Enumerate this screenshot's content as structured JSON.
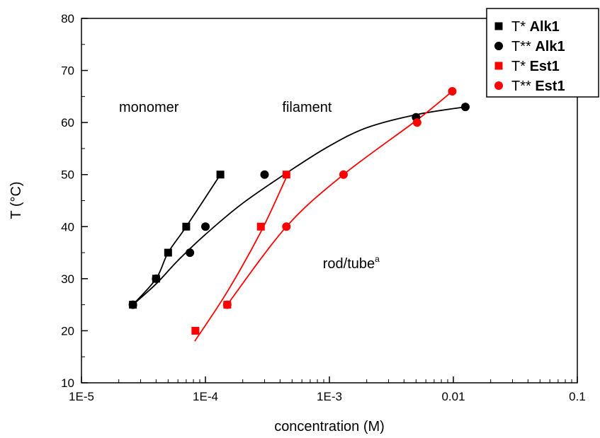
{
  "chart_data": {
    "type": "scatter",
    "x_scale": "log",
    "xlim": [
      1e-05,
      0.1
    ],
    "ylim": [
      10,
      80
    ],
    "x_ticks": [
      1e-05,
      0.0001,
      0.001,
      0.01,
      0.1
    ],
    "x_tick_labels": [
      "1E-5",
      "1E-4",
      "1E-3",
      "0.01",
      "0.1"
    ],
    "y_ticks": [
      10,
      20,
      30,
      40,
      50,
      60,
      70,
      80
    ],
    "y_tick_labels": [
      "10",
      "20",
      "30",
      "40",
      "50",
      "60",
      "70",
      "80"
    ],
    "xlabel": "concentration (M)",
    "ylabel": "T (°C)",
    "grid": false,
    "legend_position": "top-right",
    "region_labels": [
      {
        "text": "monomer",
        "x": 3.5e-05,
        "y": 63
      },
      {
        "text": "filament",
        "x": 0.00066,
        "y": 63
      },
      {
        "text": "rod/tube",
        "superscript": "a",
        "x": 0.0015,
        "y": 33
      }
    ],
    "series": [
      {
        "name": "T* Alk1",
        "legend_prefix": "T*",
        "legend_suffix": "Alk1",
        "marker": "square",
        "color": "#000000",
        "points": [
          [
            2.6e-05,
            25
          ],
          [
            4e-05,
            30
          ],
          [
            5e-05,
            35
          ],
          [
            7e-05,
            40
          ],
          [
            0.000132,
            50
          ]
        ],
        "fit": [
          [
            2.6e-05,
            25
          ],
          [
            4e-05,
            30
          ],
          [
            5e-05,
            35
          ],
          [
            7e-05,
            40
          ],
          [
            0.000132,
            50
          ]
        ]
      },
      {
        "name": "T** Alk1",
        "legend_prefix": "T**",
        "legend_suffix": "Alk1",
        "marker": "circle",
        "color": "#000000",
        "points": [
          [
            2.6e-05,
            25
          ],
          [
            4e-05,
            30
          ],
          [
            7.5e-05,
            35
          ],
          [
            0.0001,
            40
          ],
          [
            0.0003,
            50
          ],
          [
            0.005,
            61
          ],
          [
            0.0125,
            63
          ]
        ],
        "fit": [
          [
            2.6e-05,
            25
          ],
          [
            4e-05,
            29
          ],
          [
            6e-05,
            33.5
          ],
          [
            0.0001,
            38.5
          ],
          [
            0.0002,
            44.5
          ],
          [
            0.0005,
            51
          ],
          [
            0.001,
            55.5
          ],
          [
            0.002,
            59
          ],
          [
            0.005,
            61.5
          ],
          [
            0.0125,
            63
          ]
        ]
      },
      {
        "name": "T* Est1",
        "legend_prefix": "T*",
        "legend_suffix": "Est1",
        "marker": "square",
        "color": "#ff0000",
        "points": [
          [
            8.3e-05,
            20
          ],
          [
            0.00015,
            25
          ],
          [
            0.00028,
            40
          ],
          [
            0.00045,
            50
          ]
        ],
        "fit": [
          [
            8.2e-05,
            18
          ],
          [
            0.00015,
            27.5
          ],
          [
            0.00028,
            39
          ],
          [
            0.00045,
            49.5
          ]
        ]
      },
      {
        "name": "T** Est1",
        "legend_prefix": "T**",
        "legend_suffix": "Est1",
        "marker": "circle",
        "color": "#ff0000",
        "points": [
          [
            0.00015,
            25
          ],
          [
            0.00045,
            40
          ],
          [
            0.0013,
            50
          ],
          [
            0.0051,
            60
          ],
          [
            0.0098,
            66
          ]
        ],
        "fit": [
          [
            0.00015,
            25
          ],
          [
            0.00045,
            40
          ],
          [
            0.0013,
            50
          ],
          [
            0.0051,
            60.5
          ],
          [
            0.0098,
            66
          ]
        ]
      }
    ]
  }
}
